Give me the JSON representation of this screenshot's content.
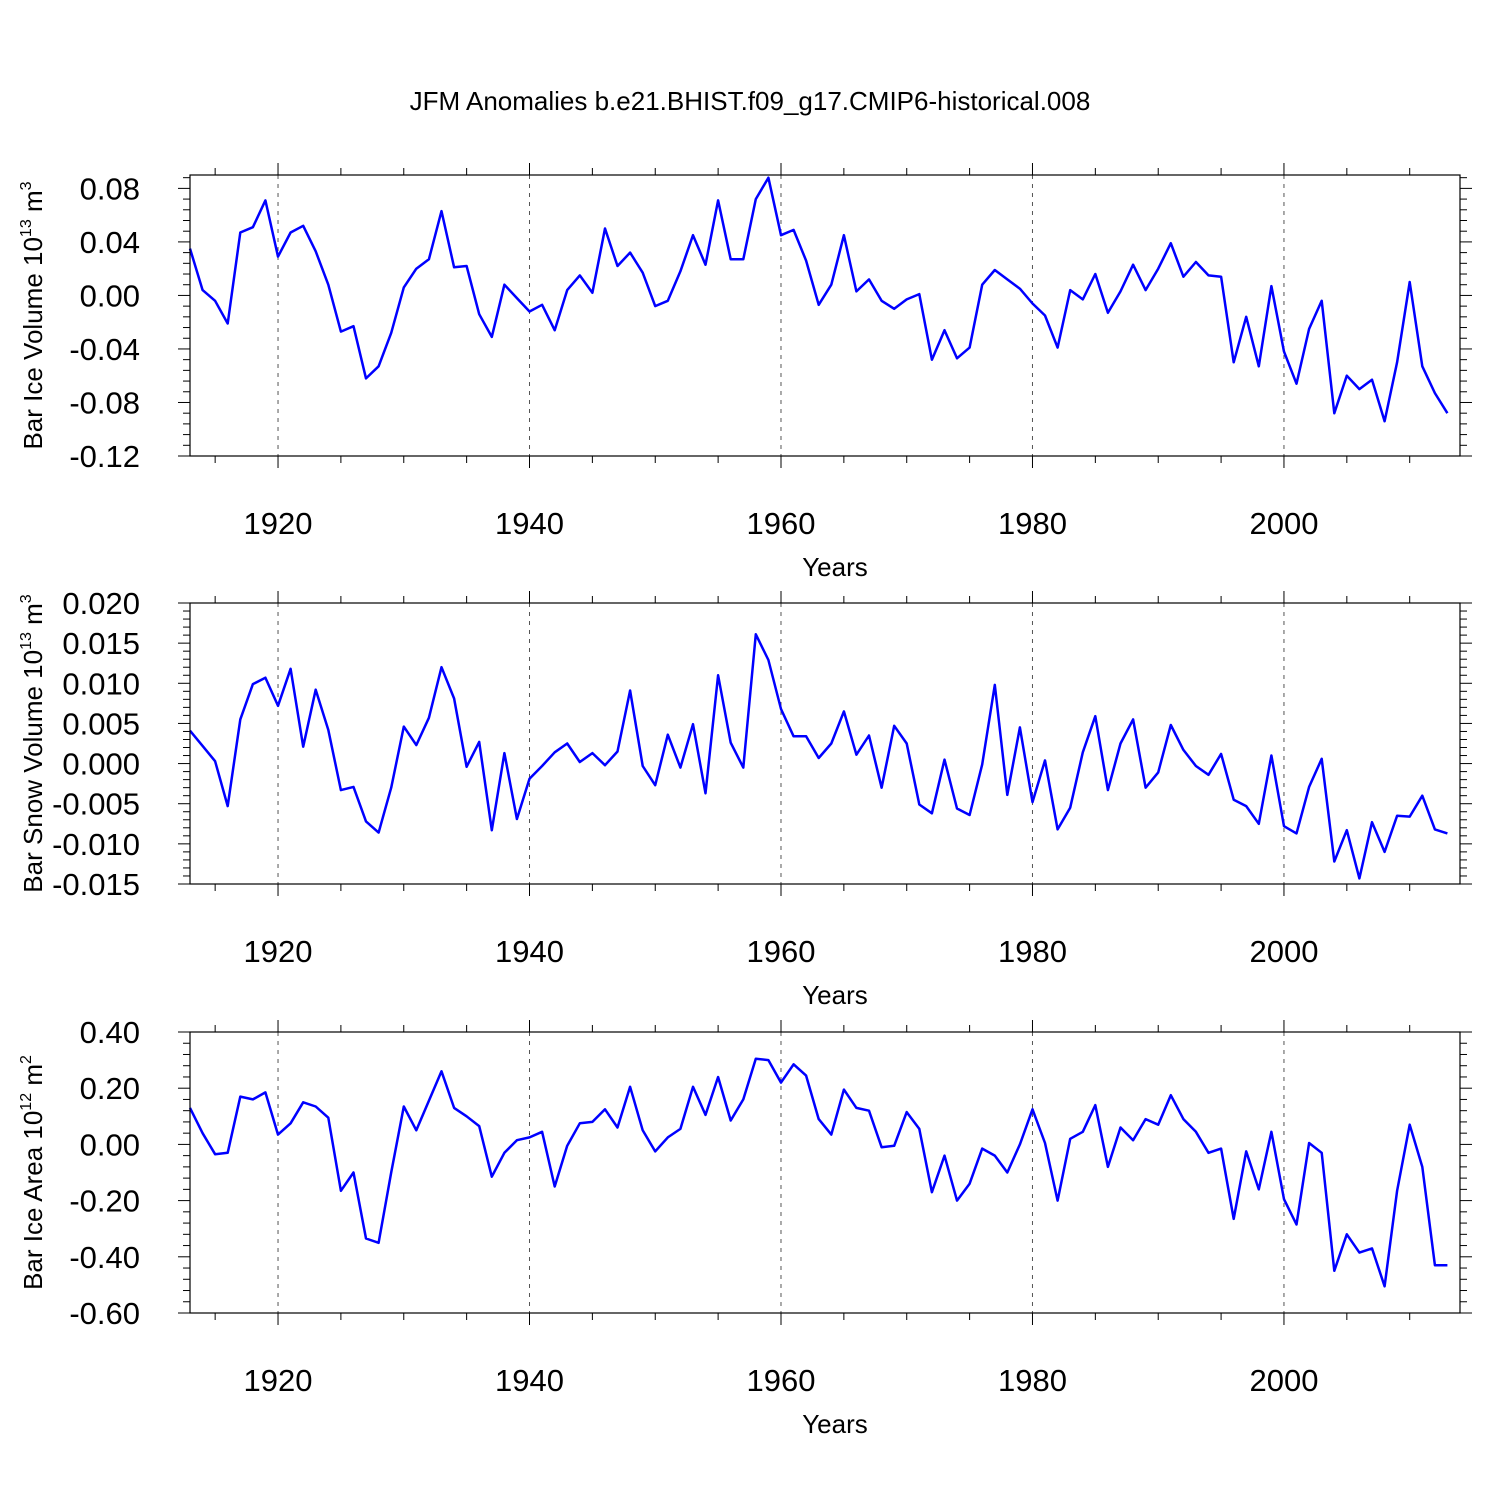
{
  "title": "JFM Anomalies b.e21.BHIST.f09_g17.CMIP6-historical.008",
  "chart_data": [
    {
      "type": "line",
      "title": "JFM Anomalies b.e21.BHIST.f09_g17.CMIP6-historical.008",
      "xlabel": "Years",
      "ylabel": {
        "text": "Bar Ice Volume 10",
        "exp": "13",
        "unit": " m",
        "unit_exp": "3"
      },
      "xlim": [
        1913,
        2014
      ],
      "ylim": [
        -0.12,
        0.09
      ],
      "xticks": [
        1920,
        1940,
        1960,
        1980,
        2000
      ],
      "xtick_labels": [
        "1920",
        "1940",
        "1960",
        "1980",
        "2000"
      ],
      "yticks": [
        0.08,
        0.04,
        0.0,
        -0.04,
        -0.08,
        -0.12
      ],
      "ytick_labels": [
        "0.08",
        "0.04",
        "0.00",
        "-0.04",
        "-0.08",
        "-0.12"
      ],
      "line_color": "#0000ff",
      "grid": "dashed vertical at major x ticks",
      "x_start": 1913,
      "values": [
        0.035,
        0.004,
        -0.004,
        -0.021,
        0.047,
        0.051,
        0.071,
        0.029,
        0.047,
        0.052,
        0.033,
        0.008,
        -0.027,
        -0.023,
        -0.062,
        -0.053,
        -0.028,
        0.006,
        0.02,
        0.027,
        0.063,
        0.021,
        0.022,
        -0.014,
        -0.031,
        0.008,
        -0.002,
        -0.012,
        -0.007,
        -0.026,
        0.004,
        0.015,
        0.002,
        0.05,
        0.022,
        0.032,
        0.017,
        -0.008,
        -0.004,
        0.018,
        0.045,
        0.023,
        0.071,
        0.027,
        0.027,
        0.072,
        0.088,
        0.045,
        0.049,
        0.026,
        -0.007,
        0.008,
        0.045,
        0.003,
        0.012,
        -0.004,
        -0.01,
        -0.003,
        0.001,
        -0.048,
        -0.026,
        -0.047,
        -0.039,
        0.008,
        0.019,
        0.012,
        0.005,
        -0.006,
        -0.015,
        -0.039,
        0.004,
        -0.003,
        0.016,
        -0.013,
        0.003,
        0.023,
        0.004,
        0.02,
        0.039,
        0.014,
        0.025,
        0.015,
        0.014,
        -0.05,
        -0.016,
        -0.053,
        0.007,
        -0.042,
        -0.066,
        -0.025,
        -0.004,
        -0.088,
        -0.06,
        -0.07,
        -0.063,
        -0.094,
        -0.05,
        0.01,
        -0.053,
        -0.073,
        -0.088
      ]
    },
    {
      "type": "line",
      "xlabel": "Years",
      "ylabel": {
        "text": "Bar Snow Volume 10",
        "exp": "13",
        "unit": " m",
        "unit_exp": "3"
      },
      "xlim": [
        1913,
        2014
      ],
      "ylim": [
        -0.015,
        0.02
      ],
      "xticks": [
        1920,
        1940,
        1960,
        1980,
        2000
      ],
      "xtick_labels": [
        "1920",
        "1940",
        "1960",
        "1980",
        "2000"
      ],
      "yticks": [
        0.02,
        0.015,
        0.01,
        0.005,
        0.0,
        -0.005,
        -0.01,
        -0.015
      ],
      "ytick_labels": [
        "0.020",
        "0.015",
        "0.010",
        "0.005",
        "0.000",
        "-0.005",
        "-0.010",
        "-0.015"
      ],
      "line_color": "#0000ff",
      "grid": "dashed vertical at major x ticks",
      "x_start": 1913,
      "values": [
        0.0041,
        0.0022,
        0.0003,
        -0.0053,
        0.0055,
        0.0099,
        0.0107,
        0.0072,
        0.0118,
        0.0021,
        0.0092,
        0.0042,
        -0.0033,
        -0.0029,
        -0.0072,
        -0.0086,
        -0.003,
        0.0046,
        0.0023,
        0.0057,
        0.012,
        0.0081,
        -0.0004,
        0.0027,
        -0.0083,
        0.0013,
        -0.0069,
        -0.0019,
        -0.0003,
        0.0014,
        0.0025,
        0.0002,
        0.0013,
        -0.0002,
        0.0015,
        0.0091,
        -0.0003,
        -0.0027,
        0.0036,
        -0.0005,
        0.0049,
        -0.0037,
        0.011,
        0.0026,
        -0.0005,
        0.0161,
        0.0129,
        0.0068,
        0.0034,
        0.0034,
        0.0007,
        0.0025,
        0.0065,
        0.0011,
        0.0035,
        -0.003,
        0.0047,
        0.0025,
        -0.0051,
        -0.0062,
        0.0005,
        -0.0056,
        -0.0064,
        -0.0001,
        0.0098,
        -0.0039,
        0.0045,
        -0.0048,
        0.0004,
        -0.0082,
        -0.0055,
        0.0014,
        0.0059,
        -0.0033,
        0.0025,
        0.0055,
        -0.003,
        -0.0011,
        0.0048,
        0.0017,
        -0.0003,
        -0.0014,
        0.0012,
        -0.0045,
        -0.0053,
        -0.0075,
        0.001,
        -0.0078,
        -0.0087,
        -0.0029,
        0.0006,
        -0.0122,
        -0.0083,
        -0.0143,
        -0.0073,
        -0.011,
        -0.0065,
        -0.0066,
        -0.004,
        -0.0082,
        -0.0087
      ]
    },
    {
      "type": "line",
      "xlabel": "Years",
      "ylabel": {
        "text": "Bar Ice Area 10",
        "exp": "12",
        "unit": " m",
        "unit_exp": "2"
      },
      "xlim": [
        1913,
        2014
      ],
      "ylim": [
        -0.6,
        0.4
      ],
      "xticks": [
        1920,
        1940,
        1960,
        1980,
        2000
      ],
      "xtick_labels": [
        "1920",
        "1940",
        "1960",
        "1980",
        "2000"
      ],
      "yticks": [
        0.4,
        0.2,
        0.0,
        -0.2,
        -0.4,
        -0.6
      ],
      "ytick_labels": [
        "0.40",
        "0.20",
        "0.00",
        "-0.20",
        "-0.40",
        "-0.60"
      ],
      "line_color": "#0000ff",
      "grid": "dashed vertical at major x ticks",
      "x_start": 1913,
      "values": [
        0.13,
        0.04,
        -0.035,
        -0.03,
        0.17,
        0.16,
        0.185,
        0.035,
        0.075,
        0.15,
        0.135,
        0.095,
        -0.165,
        -0.1,
        -0.335,
        -0.35,
        -0.1,
        0.135,
        0.05,
        0.155,
        0.26,
        0.13,
        0.1,
        0.065,
        -0.115,
        -0.03,
        0.015,
        0.025,
        0.045,
        -0.15,
        -0.005,
        0.075,
        0.08,
        0.125,
        0.06,
        0.205,
        0.05,
        -0.025,
        0.025,
        0.055,
        0.205,
        0.105,
        0.24,
        0.085,
        0.16,
        0.305,
        0.3,
        0.22,
        0.285,
        0.245,
        0.09,
        0.035,
        0.195,
        0.13,
        0.12,
        -0.01,
        -0.005,
        0.115,
        0.055,
        -0.17,
        -0.04,
        -0.2,
        -0.14,
        -0.015,
        -0.04,
        -0.1,
        0.0,
        0.125,
        0.005,
        -0.2,
        0.02,
        0.045,
        0.14,
        -0.08,
        0.06,
        0.015,
        0.09,
        0.07,
        0.175,
        0.09,
        0.045,
        -0.03,
        -0.015,
        -0.265,
        -0.025,
        -0.16,
        0.045,
        -0.195,
        -0.285,
        0.005,
        -0.03,
        -0.45,
        -0.32,
        -0.385,
        -0.37,
        -0.505,
        -0.165,
        0.07,
        -0.08,
        -0.43,
        -0.43
      ]
    }
  ]
}
